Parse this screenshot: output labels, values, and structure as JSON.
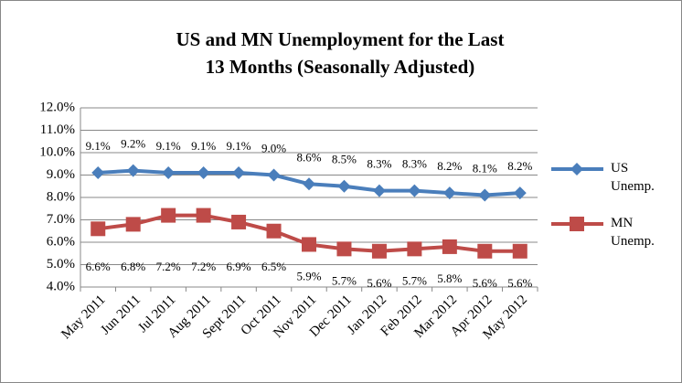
{
  "chart_data": {
    "type": "line",
    "title": "US and MN Unemployment for the Last 13 Months (Seasonally Adjusted)",
    "categories": [
      "May 2011",
      "Jun 2011",
      "Jul 2011",
      "Aug 2011",
      "Sept 2011",
      "Oct 2011",
      "Nov 2011",
      "Dec 2011",
      "Jan 2012",
      "Feb 2012",
      "Mar 2012",
      "Apr 2012",
      "May 2012"
    ],
    "series": [
      {
        "name": "US Unemp.",
        "color": "#4a7ebb",
        "marker": "diamond",
        "values": [
          9.1,
          9.2,
          9.1,
          9.1,
          9.1,
          9.0,
          8.6,
          8.5,
          8.3,
          8.3,
          8.2,
          8.1,
          8.2
        ],
        "value_labels": [
          "9.1%",
          "9.2%",
          "9.1%",
          "9.1%",
          "9.1%",
          "9.0%",
          "8.6%",
          "8.5%",
          "8.3%",
          "8.3%",
          "8.2%",
          "8.1%",
          "8.2%"
        ]
      },
      {
        "name": "MN Unemp.",
        "color": "#be4b48",
        "marker": "square",
        "values": [
          6.6,
          6.8,
          7.2,
          7.2,
          6.9,
          6.5,
          5.9,
          5.7,
          5.6,
          5.7,
          5.8,
          5.6,
          5.6
        ],
        "value_labels": [
          "6.6%",
          "6.8%",
          "7.2%",
          "7.2%",
          "6.9%",
          "6.5%",
          "5.9%",
          "5.7%",
          "5.6%",
          "5.7%",
          "5.8%",
          "5.6%",
          "5.6%"
        ]
      }
    ],
    "ylim": [
      4,
      12
    ],
    "yticks": [
      {
        "value": 4,
        "label": "4.0%"
      },
      {
        "value": 5,
        "label": "5.0%"
      },
      {
        "value": 6,
        "label": "6.0%"
      },
      {
        "value": 7,
        "label": "7.0%"
      },
      {
        "value": 8,
        "label": "8.0%"
      },
      {
        "value": 9,
        "label": "9.0%"
      },
      {
        "value": 10,
        "label": "10.0%"
      },
      {
        "value": 11,
        "label": "11.0%"
      },
      {
        "value": 12,
        "label": "12.0%"
      }
    ],
    "grid": true,
    "legend": "right"
  }
}
